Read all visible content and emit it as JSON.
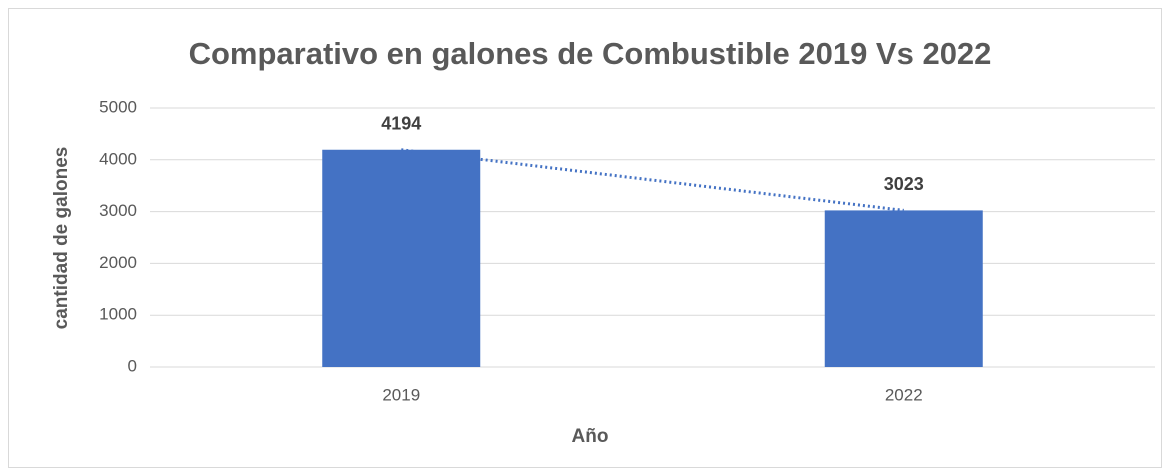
{
  "chart_data": {
    "type": "bar",
    "title": "Comparativo en galones de Combustible 2019 Vs 2022",
    "x_label": "Año",
    "y_label": "cantidad de galones",
    "categories": [
      "2019",
      "2022"
    ],
    "values": [
      4194,
      3023
    ],
    "color": "#4472c4",
    "ylim": [
      0,
      5000
    ],
    "yticks": [
      0,
      1000,
      2000,
      3000,
      4000,
      5000
    ],
    "grid": true,
    "trendline": true,
    "data_labels": true
  }
}
